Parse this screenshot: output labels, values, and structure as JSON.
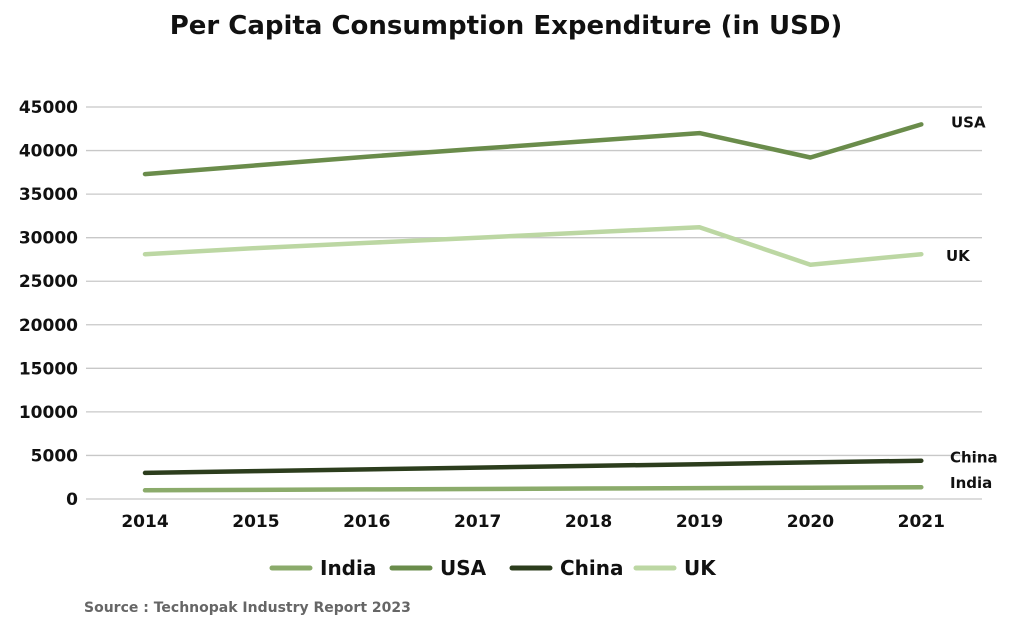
{
  "chart_data": {
    "type": "line",
    "title": "Per Capita Consumption Expenditure (in USD)",
    "xlabel": "",
    "ylabel": "",
    "x": [
      "2014",
      "2015",
      "2016",
      "2017",
      "2018",
      "2019",
      "2020",
      "2021"
    ],
    "ylim": [
      0,
      45000
    ],
    "yticks": [
      0,
      5000,
      10000,
      15000,
      20000,
      25000,
      30000,
      35000,
      40000,
      45000
    ],
    "grid": "horizontal",
    "legend_position": "bottom",
    "series": [
      {
        "name": "India",
        "color": "#8bab6b",
        "values": [
          1000,
          1050,
          1100,
          1150,
          1200,
          1250,
          1300,
          1350
        ]
      },
      {
        "name": "USA",
        "color": "#6a8c4b",
        "values": [
          37300,
          38300,
          39300,
          40200,
          41100,
          42000,
          39200,
          43000
        ]
      },
      {
        "name": "China",
        "color": "#2c3d1d",
        "values": [
          3000,
          3200,
          3400,
          3600,
          3800,
          4000,
          4200,
          4400
        ]
      },
      {
        "name": "UK",
        "color": "#bcd7a3",
        "values": [
          28100,
          28800,
          29400,
          30000,
          30600,
          31200,
          26900,
          28100
        ]
      }
    ],
    "end_labels": [
      "India",
      "USA",
      "China",
      "UK"
    ]
  },
  "source": "Source : Technopak Industry Report   2023"
}
